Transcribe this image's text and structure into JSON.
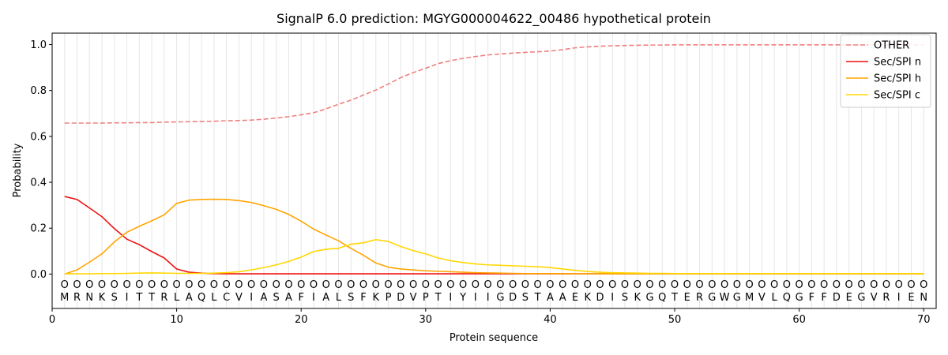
{
  "chart_data": {
    "type": "line",
    "title": "SignalP 6.0 prediction: MGYG000004622_00486 hypothetical protein",
    "xlabel": "Protein sequence",
    "ylabel": "Probability",
    "xlim": [
      0,
      71
    ],
    "ylim": [
      -0.15,
      1.05
    ],
    "xticks": [
      "0",
      "10",
      "20",
      "30",
      "40",
      "50",
      "60",
      "70"
    ],
    "yticks": [
      "0.0",
      "0.2",
      "0.4",
      "0.6",
      "0.8",
      "1.0"
    ],
    "legend_position": "top-right",
    "sequence": [
      "M",
      "R",
      "N",
      "K",
      "S",
      "I",
      "T",
      "T",
      "R",
      "L",
      "A",
      "Q",
      "L",
      "C",
      "V",
      "I",
      "A",
      "S",
      "A",
      "F",
      "I",
      "A",
      "L",
      "S",
      "F",
      "K",
      "P",
      "D",
      "V",
      "P",
      "T",
      "I",
      "Y",
      "I",
      "I",
      "G",
      "D",
      "S",
      "T",
      "A",
      "A",
      "E",
      "K",
      "D",
      "I",
      "S",
      "K",
      "G",
      "Q",
      "T",
      "E",
      "R",
      "G",
      "W",
      "G",
      "M",
      "V",
      "L",
      "Q",
      "G",
      "F",
      "F",
      "D",
      "E",
      "G",
      "V",
      "R",
      "I",
      "E",
      "N"
    ],
    "region_marker": "O",
    "series": [
      {
        "name": "OTHER",
        "color": "#f08080",
        "dash": true,
        "values": [
          0.658,
          0.658,
          0.658,
          0.658,
          0.659,
          0.659,
          0.66,
          0.66,
          0.662,
          0.663,
          0.664,
          0.665,
          0.666,
          0.668,
          0.669,
          0.671,
          0.675,
          0.68,
          0.686,
          0.694,
          0.703,
          0.72,
          0.74,
          0.758,
          0.78,
          0.802,
          0.828,
          0.856,
          0.878,
          0.897,
          0.917,
          0.93,
          0.94,
          0.948,
          0.955,
          0.959,
          0.963,
          0.966,
          0.969,
          0.972,
          0.978,
          0.986,
          0.99,
          0.993,
          0.995,
          0.996,
          0.997,
          0.998,
          0.998,
          0.999,
          0.999,
          0.999,
          0.999,
          0.999,
          0.999,
          0.999,
          0.999,
          0.999,
          0.999,
          0.999,
          0.999,
          0.999,
          0.999,
          0.999,
          0.999,
          0.999,
          0.999,
          0.999,
          0.999,
          0.999
        ]
      },
      {
        "name": "Sec/SPI n",
        "color": "#ee1111",
        "dash": false,
        "values": [
          0.338,
          0.325,
          0.288,
          0.25,
          0.198,
          0.152,
          0.128,
          0.098,
          0.07,
          0.022,
          0.008,
          0.004,
          0.002,
          0.001,
          0.001,
          0.001,
          0.001,
          0.001,
          0.001,
          0.001,
          0.001,
          0.001,
          0.001,
          0.001,
          0.001,
          0.001,
          0.001,
          0.001,
          0.001,
          0.001,
          0.001,
          0.001,
          0.001,
          0.001,
          0.001,
          0.001,
          0.001,
          0.001,
          0.001,
          0.001,
          0.001,
          0.001,
          0.001,
          0.001,
          0.001,
          0.001,
          0.001,
          0.001,
          0.001,
          0.001,
          0.001,
          0.001,
          0.001,
          0.001,
          0.001,
          0.001,
          0.001,
          0.001,
          0.001,
          0.001,
          0.001,
          0.001,
          0.001,
          0.001,
          0.001,
          0.001,
          0.001,
          0.001,
          0.001,
          0.001
        ]
      },
      {
        "name": "Sec/SPI h",
        "color": "#ffa500",
        "dash": false,
        "values": [
          0.0,
          0.018,
          0.052,
          0.088,
          0.14,
          0.182,
          0.208,
          0.232,
          0.258,
          0.308,
          0.322,
          0.325,
          0.326,
          0.325,
          0.32,
          0.312,
          0.298,
          0.282,
          0.26,
          0.23,
          0.196,
          0.17,
          0.145,
          0.112,
          0.082,
          0.048,
          0.03,
          0.022,
          0.018,
          0.014,
          0.012,
          0.01,
          0.008,
          0.006,
          0.005,
          0.004,
          0.003,
          0.002,
          0.002,
          0.002,
          0.002,
          0.001,
          0.001,
          0.001,
          0.001,
          0.001,
          0.001,
          0.001,
          0.001,
          0.001,
          0.001,
          0.001,
          0.001,
          0.001,
          0.001,
          0.001,
          0.001,
          0.001,
          0.001,
          0.001,
          0.001,
          0.001,
          0.001,
          0.001,
          0.001,
          0.001,
          0.001,
          0.001,
          0.001,
          0.001
        ]
      },
      {
        "name": "Sec/SPI c",
        "color": "#ffd700",
        "dash": false,
        "values": [
          0.001,
          0.001,
          0.001,
          0.002,
          0.002,
          0.003,
          0.004,
          0.005,
          0.004,
          0.003,
          0.003,
          0.003,
          0.004,
          0.006,
          0.01,
          0.018,
          0.028,
          0.04,
          0.055,
          0.074,
          0.098,
          0.108,
          0.112,
          0.13,
          0.136,
          0.15,
          0.142,
          0.12,
          0.102,
          0.088,
          0.07,
          0.058,
          0.05,
          0.044,
          0.04,
          0.038,
          0.036,
          0.034,
          0.032,
          0.028,
          0.022,
          0.016,
          0.011,
          0.008,
          0.006,
          0.005,
          0.004,
          0.003,
          0.003,
          0.002,
          0.002,
          0.002,
          0.002,
          0.002,
          0.002,
          0.002,
          0.002,
          0.002,
          0.002,
          0.002,
          0.002,
          0.002,
          0.002,
          0.002,
          0.002,
          0.002,
          0.002,
          0.002,
          0.002,
          0.002
        ]
      }
    ]
  }
}
